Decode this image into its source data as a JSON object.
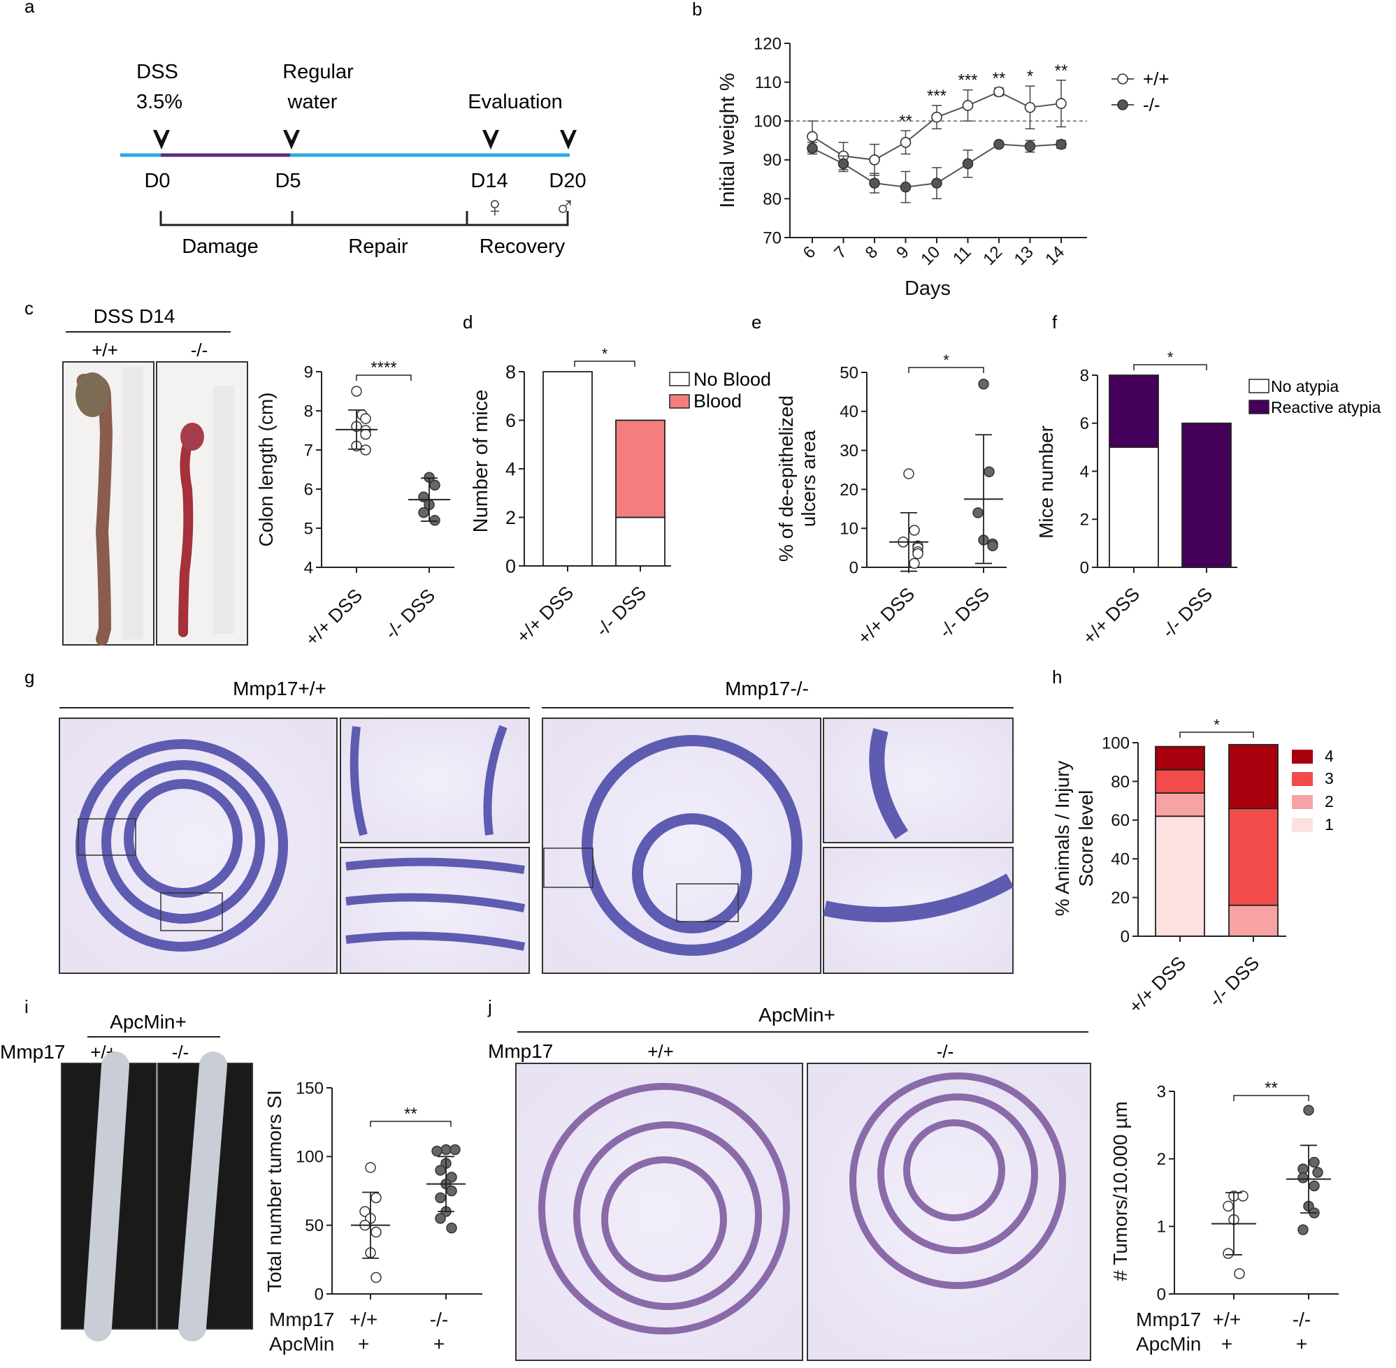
{
  "panel_letters": {
    "a": "a",
    "b": "b",
    "c": "c",
    "d": "d",
    "e": "e",
    "f": "f",
    "g": "g",
    "h": "h",
    "i": "i",
    "j": "j"
  },
  "panel_a": {
    "dss": "DSS",
    "dss_conc": "3.5%",
    "regular": "Regular",
    "water": "water",
    "evaluation": "Evaluation",
    "days": [
      "D0",
      "D5",
      "D14",
      "D20"
    ],
    "female": "♀",
    "male": "♂",
    "phases": [
      "Damage",
      "Repair",
      "Recovery"
    ],
    "colors": {
      "timeline": "#29abe2",
      "dss_bar": "#5b2c83"
    }
  },
  "panel_c": {
    "header": "DSS D14",
    "genotypes": [
      "+/+",
      "-/-"
    ]
  },
  "panel_g": {
    "left": "Mmp17+/+",
    "right": "Mmp17-/-"
  },
  "panel_i": {
    "header": "ApcMin+",
    "row_label": "Mmp17",
    "genotypes": [
      "+/+",
      "-/-"
    ]
  },
  "panel_j": {
    "header": "ApcMin+",
    "row_label": "Mmp17",
    "genotypes": [
      "+/+",
      "-/-"
    ]
  },
  "chart_data": [
    {
      "id": "b",
      "type": "line",
      "xlabel": "Days",
      "ylabel": "Initial weight %",
      "ylim": [
        70,
        120
      ],
      "yticks": [
        70,
        80,
        90,
        100,
        110,
        120
      ],
      "x": [
        "6",
        "7",
        "8",
        "9",
        "10",
        "11",
        "12",
        "13",
        "14"
      ],
      "reference_line": 100,
      "series": [
        {
          "name": "+/+",
          "values": [
            96,
            91,
            90,
            94.5,
            101,
            104,
            107.5,
            103.5,
            104.5
          ],
          "err": [
            4,
            3.5,
            4,
            3,
            3,
            4,
            1,
            5.5,
            6
          ],
          "marker": "open"
        },
        {
          "name": "-/-",
          "values": [
            93,
            89,
            84,
            83,
            84,
            89,
            94,
            93.5,
            94
          ],
          "err": [
            1.5,
            2,
            2.5,
            4,
            4,
            3.5,
            0.5,
            1.5,
            1
          ],
          "marker": "filled"
        }
      ],
      "significance": [
        "",
        "",
        "",
        "**",
        "***",
        "***",
        "**",
        "*",
        "**"
      ]
    },
    {
      "id": "c",
      "type": "scatter",
      "ylabel": "Colon length (cm)",
      "ylim": [
        4,
        9
      ],
      "yticks": [
        4,
        5,
        6,
        7,
        8,
        9
      ],
      "categories": [
        "+/+ DSS",
        "-/- DSS"
      ],
      "groups": [
        {
          "values": [
            8.5,
            7.9,
            7.8,
            7.6,
            7.5,
            7.4,
            7.1,
            7.0
          ],
          "mean": 7.52,
          "sd": 0.5,
          "marker": "open"
        },
        {
          "values": [
            6.3,
            6.1,
            5.8,
            5.6,
            5.4,
            5.2
          ],
          "mean": 5.73,
          "sd": 0.55,
          "marker": "filled"
        }
      ],
      "significance": "****"
    },
    {
      "id": "d",
      "type": "bar",
      "ylabel": "Number of mice",
      "ylim": [
        0,
        8
      ],
      "yticks": [
        0,
        2,
        4,
        6,
        8
      ],
      "categories": [
        "+/+ DSS",
        "-/- DSS"
      ],
      "series": [
        {
          "name": "No Blood",
          "values": [
            8,
            2
          ],
          "color": "#ffffff"
        },
        {
          "name": "Blood",
          "values": [
            0,
            4
          ],
          "color": "#f47e7e"
        }
      ],
      "significance": "*"
    },
    {
      "id": "e",
      "type": "scatter",
      "ylabel": "% of de-epithelized ulcers area",
      "ylim": [
        0,
        50
      ],
      "yticks": [
        0,
        10,
        20,
        30,
        40,
        50
      ],
      "categories": [
        "+/+ DSS",
        "-/- DSS"
      ],
      "groups": [
        {
          "values": [
            24,
            9.5,
            6.5,
            5.5,
            5,
            4,
            3.5,
            1
          ],
          "mean": 6.5,
          "sd": 7.5,
          "marker": "open"
        },
        {
          "values": [
            47,
            24.5,
            14,
            7,
            6,
            5.5
          ],
          "mean": 17.5,
          "sd": 16.5,
          "marker": "filled"
        }
      ],
      "significance": "*"
    },
    {
      "id": "f",
      "type": "bar",
      "ylabel": "Mice number",
      "ylim": [
        0,
        8
      ],
      "yticks": [
        0,
        2,
        4,
        6,
        8
      ],
      "categories": [
        "+/+ DSS",
        "-/- DSS"
      ],
      "series": [
        {
          "name": "No atypia",
          "values": [
            5,
            0
          ],
          "color": "#ffffff"
        },
        {
          "name": "Reactive atypia",
          "values": [
            3,
            6
          ],
          "color": "#45005a"
        }
      ],
      "significance": "*"
    },
    {
      "id": "h",
      "type": "bar",
      "ylabel": "% Animals / Injury Score level",
      "ylim": [
        0,
        100
      ],
      "yticks": [
        0,
        20,
        40,
        60,
        80,
        100
      ],
      "categories": [
        "+/+ DSS",
        "-/- DSS"
      ],
      "series": [
        {
          "name": "1",
          "values": [
            62,
            0
          ],
          "color": "#fde0e0"
        },
        {
          "name": "2",
          "values": [
            12,
            16
          ],
          "color": "#f8a3a3"
        },
        {
          "name": "3",
          "values": [
            12,
            50
          ],
          "color": "#f24b4b"
        },
        {
          "name": "4",
          "values": [
            12,
            33
          ],
          "color": "#a8000c"
        }
      ],
      "significance": "*"
    },
    {
      "id": "i",
      "type": "scatter",
      "ylabel": "Total number tumors SI",
      "ylim": [
        0,
        150
      ],
      "yticks": [
        0,
        50,
        100,
        150
      ],
      "row_labels": [
        {
          "label": "Mmp17",
          "values": [
            "+/+",
            "-/-"
          ]
        },
        {
          "label": "ApcMin",
          "values": [
            "+",
            "+"
          ]
        }
      ],
      "groups": [
        {
          "values": [
            92,
            70,
            60,
            55,
            50,
            45,
            30,
            12
          ],
          "mean": 50,
          "sd": 24,
          "marker": "open"
        },
        {
          "values": [
            105,
            105,
            104,
            95,
            90,
            85,
            80,
            75,
            70,
            60,
            55,
            48
          ],
          "mean": 80,
          "sd": 20,
          "marker": "filled"
        }
      ],
      "significance": "**"
    },
    {
      "id": "j",
      "type": "scatter",
      "ylabel": "# Tumors/10.000 µm",
      "ylim": [
        0,
        3
      ],
      "yticks": [
        0,
        1,
        2,
        3
      ],
      "row_labels": [
        {
          "label": "Mmp17",
          "values": [
            "+/+",
            "-/-"
          ]
        },
        {
          "label": "ApcMin",
          "values": [
            "+",
            "+"
          ]
        }
      ],
      "groups": [
        {
          "values": [
            1.45,
            1.45,
            1.3,
            1.1,
            0.6,
            0.3
          ],
          "mean": 1.04,
          "sd": 0.46,
          "marker": "open"
        },
        {
          "values": [
            2.72,
            1.95,
            1.85,
            1.8,
            1.72,
            1.6,
            1.3,
            1.2,
            0.95
          ],
          "mean": 1.7,
          "sd": 0.5,
          "marker": "filled"
        }
      ],
      "significance": "**"
    }
  ]
}
